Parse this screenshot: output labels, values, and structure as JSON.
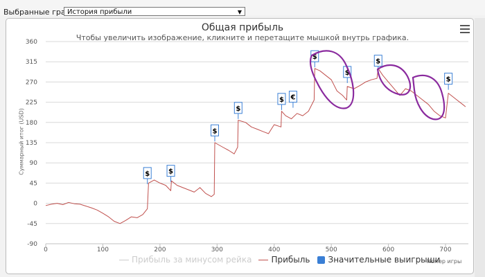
{
  "toolbar": {
    "select_label": "Выбранные графики:",
    "select_value": "История прибыли"
  },
  "chart_data": {
    "type": "line",
    "title": "Общая прибыль",
    "subtitle": "Чтобы увеличить изображение, кликните и перетащите мышкой внутрь графика.",
    "xlabel": "Номер игры",
    "ylabel": "Суммарный итог (USD)",
    "xlim": [
      0,
      740
    ],
    "ylim": [
      -90,
      360
    ],
    "xticks": [
      0,
      100,
      200,
      300,
      400,
      500,
      600,
      700
    ],
    "yticks": [
      -90,
      -45,
      0,
      45,
      90,
      135,
      180,
      225,
      270,
      315,
      360
    ],
    "legend_position": "bottom-center",
    "series": [
      {
        "name": "Прибыль за минусом рейка",
        "color": "#cccccc",
        "visible": false,
        "x": [],
        "y": []
      },
      {
        "name": "Прибыль",
        "color": "#c0504d",
        "x": [
          0,
          10,
          20,
          30,
          40,
          50,
          60,
          70,
          80,
          90,
          100,
          110,
          120,
          130,
          140,
          150,
          160,
          170,
          178,
          180,
          190,
          200,
          210,
          219,
          220,
          230,
          240,
          250,
          260,
          270,
          280,
          290,
          295,
          296,
          310,
          320,
          330,
          336,
          337,
          350,
          360,
          370,
          380,
          390,
          400,
          412,
          413,
          420,
          430,
          440,
          450,
          460,
          470,
          471,
          480,
          490,
          500,
          510,
          520,
          527,
          528,
          540,
          550,
          560,
          570,
          580,
          582,
          590,
          600,
          610,
          620,
          630,
          640,
          650,
          660,
          670,
          680,
          690,
          700,
          705,
          710,
          720,
          730,
          735
        ],
        "y": [
          -5,
          -2,
          0,
          -3,
          2,
          -1,
          -2,
          -6,
          -10,
          -15,
          -22,
          -30,
          -40,
          -45,
          -38,
          -30,
          -32,
          -25,
          -12,
          45,
          52,
          45,
          40,
          28,
          50,
          40,
          35,
          30,
          25,
          35,
          22,
          15,
          20,
          135,
          125,
          118,
          110,
          125,
          185,
          180,
          170,
          165,
          160,
          155,
          175,
          170,
          205,
          195,
          188,
          200,
          195,
          205,
          230,
          300,
          295,
          285,
          275,
          250,
          240,
          230,
          260,
          255,
          262,
          270,
          275,
          278,
          300,
          285,
          270,
          255,
          240,
          255,
          250,
          240,
          230,
          220,
          205,
          195,
          190,
          245,
          240,
          230,
          220,
          215
        ]
      }
    ],
    "big_wins_name": "Значительные выигрыши",
    "big_wins_color": "#3a7fd5",
    "markers": [
      {
        "x": 178,
        "y": 55,
        "label": "$"
      },
      {
        "x": 219,
        "y": 60,
        "label": "$"
      },
      {
        "x": 296,
        "y": 150,
        "label": "$"
      },
      {
        "x": 337,
        "y": 200,
        "label": "$"
      },
      {
        "x": 413,
        "y": 220,
        "label": "$"
      },
      {
        "x": 433,
        "y": 225,
        "label": "€"
      },
      {
        "x": 471,
        "y": 315,
        "label": "$"
      },
      {
        "x": 528,
        "y": 280,
        "label": "$"
      },
      {
        "x": 582,
        "y": 305,
        "label": "$"
      },
      {
        "x": 705,
        "y": 265,
        "label": "$"
      }
    ]
  }
}
